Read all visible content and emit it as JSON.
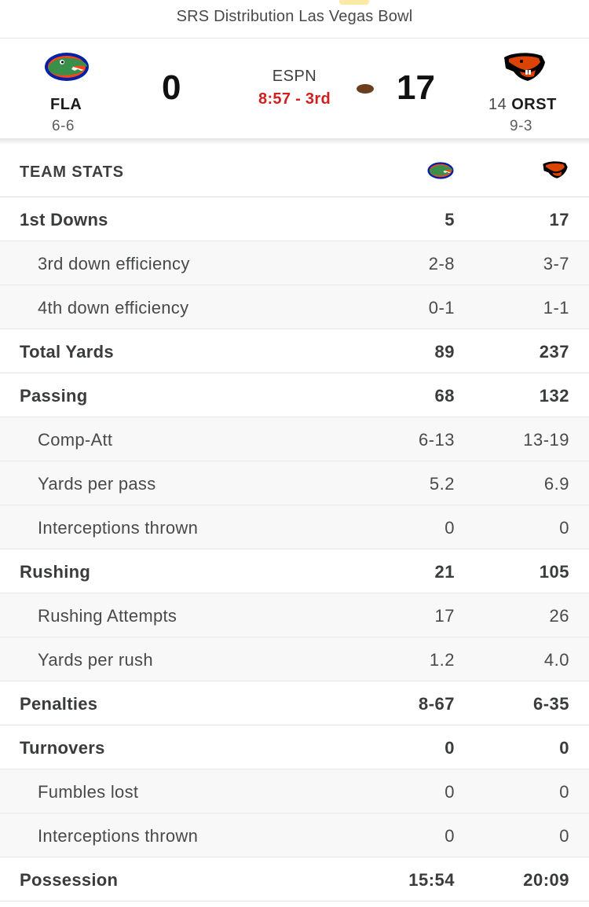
{
  "game": {
    "bowl_name": "SRS Distribution Las Vegas Bowl",
    "network": "ESPN",
    "clock": "8:57 - 3rd"
  },
  "away_team": {
    "abbr": "FLA",
    "record": "6-6",
    "score": "0",
    "logo": "florida-gator-logo",
    "colors": {
      "primary": "#0021a5",
      "secondary": "#fa4616",
      "accent": "#3a8f4a"
    }
  },
  "home_team": {
    "rank": "14",
    "abbr": "ORST",
    "record": "9-3",
    "score": "17",
    "logo": "oregon-state-beaver-logo",
    "has_possession": true,
    "colors": {
      "primary": "#dc4405",
      "secondary": "#000000"
    }
  },
  "stats": {
    "header": "TEAM STATS",
    "rows": [
      {
        "label": "1st Downs",
        "away": "5",
        "home": "17",
        "level": "main"
      },
      {
        "label": "3rd down efficiency",
        "away": "2-8",
        "home": "3-7",
        "level": "sub"
      },
      {
        "label": "4th down efficiency",
        "away": "0-1",
        "home": "1-1",
        "level": "sub"
      },
      {
        "label": "Total Yards",
        "away": "89",
        "home": "237",
        "level": "main"
      },
      {
        "label": "Passing",
        "away": "68",
        "home": "132",
        "level": "main"
      },
      {
        "label": "Comp-Att",
        "away": "6-13",
        "home": "13-19",
        "level": "sub"
      },
      {
        "label": "Yards per pass",
        "away": "5.2",
        "home": "6.9",
        "level": "sub"
      },
      {
        "label": "Interceptions thrown",
        "away": "0",
        "home": "0",
        "level": "sub"
      },
      {
        "label": "Rushing",
        "away": "21",
        "home": "105",
        "level": "main"
      },
      {
        "label": "Rushing Attempts",
        "away": "17",
        "home": "26",
        "level": "sub"
      },
      {
        "label": "Yards per rush",
        "away": "1.2",
        "home": "4.0",
        "level": "sub"
      },
      {
        "label": "Penalties",
        "away": "8-67",
        "home": "6-35",
        "level": "main"
      },
      {
        "label": "Turnovers",
        "away": "0",
        "home": "0",
        "level": "main"
      },
      {
        "label": "Fumbles lost",
        "away": "0",
        "home": "0",
        "level": "sub"
      },
      {
        "label": "Interceptions thrown",
        "away": "0",
        "home": "0",
        "level": "sub"
      },
      {
        "label": "Possession",
        "away": "15:54",
        "home": "20:09",
        "level": "main"
      }
    ]
  }
}
